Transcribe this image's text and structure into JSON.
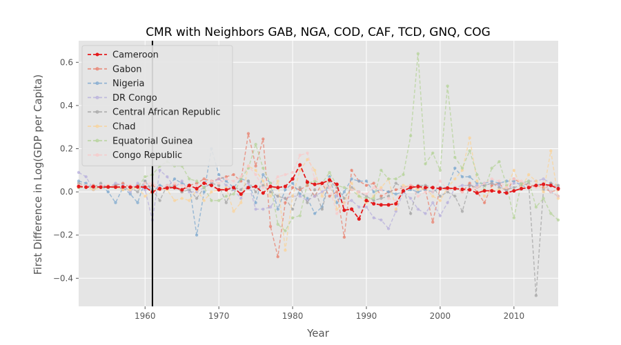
{
  "chart_data": {
    "type": "line",
    "title": "CMR with Neighbors GAB, NGA, COD, CAF, TCD, GNQ, COG",
    "xlabel": "Year",
    "ylabel": "First Difference in Log(GDP per Capita)",
    "xlim": [
      1951,
      2016
    ],
    "ylim": [
      -0.53,
      0.7
    ],
    "x_ticks": [
      1960,
      1970,
      1980,
      1990,
      2000,
      2010
    ],
    "y_ticks": [
      -0.4,
      -0.2,
      0.0,
      0.2,
      0.4,
      0.6
    ],
    "x_tick_labels": [
      "1960",
      "1970",
      "1980",
      "1990",
      "2000",
      "2010"
    ],
    "y_tick_labels": [
      "−0.4",
      "−0.2",
      "0.0",
      "0.2",
      "0.4",
      "0.6"
    ],
    "grid": true,
    "legend_position": "top-left",
    "vertical_line": {
      "x": 1961,
      "color": "#000000"
    },
    "x": [
      1951,
      1952,
      1953,
      1954,
      1955,
      1956,
      1957,
      1958,
      1959,
      1960,
      1961,
      1962,
      1963,
      1964,
      1965,
      1966,
      1967,
      1968,
      1969,
      1970,
      1971,
      1972,
      1973,
      1974,
      1975,
      1976,
      1977,
      1978,
      1979,
      1980,
      1981,
      1982,
      1983,
      1984,
      1985,
      1986,
      1987,
      1988,
      1989,
      1990,
      1991,
      1992,
      1993,
      1994,
      1995,
      1996,
      1997,
      1998,
      1999,
      2000,
      2001,
      2002,
      2003,
      2004,
      2005,
      2006,
      2007,
      2008,
      2009,
      2010,
      2011,
      2012,
      2013,
      2014,
      2015,
      2016
    ],
    "series": [
      {
        "name": "Cameroon",
        "color": "#e41a1c",
        "highlight": true,
        "values": [
          0.025,
          0.022,
          0.024,
          0.022,
          0.023,
          0.022,
          0.023,
          0.022,
          0.023,
          0.022,
          0.0,
          0.015,
          0.018,
          0.02,
          0.01,
          0.03,
          0.015,
          0.04,
          0.03,
          0.01,
          0.01,
          0.02,
          -0.01,
          0.02,
          0.025,
          -0.005,
          0.025,
          0.02,
          0.025,
          0.06,
          0.125,
          0.045,
          0.035,
          0.04,
          0.055,
          0.035,
          -0.085,
          -0.08,
          -0.125,
          -0.04,
          -0.055,
          -0.06,
          -0.06,
          -0.055,
          0.005,
          0.02,
          0.025,
          0.02,
          0.02,
          0.015,
          0.018,
          0.015,
          0.012,
          0.01,
          -0.005,
          0.005,
          0.005,
          0.0,
          -0.005,
          0.005,
          0.015,
          0.02,
          0.03,
          0.035,
          0.03,
          0.015
        ]
      },
      {
        "name": "Gabon",
        "color": "#e8806e",
        "values": [
          0.03,
          0.02,
          0.03,
          0.02,
          0.02,
          0.03,
          0.04,
          0.02,
          0.03,
          0.02,
          0.03,
          0.01,
          0.02,
          0.03,
          0.0,
          0.03,
          0.04,
          0.06,
          0.05,
          0.06,
          0.07,
          0.08,
          0.05,
          0.27,
          0.12,
          0.245,
          -0.16,
          -0.3,
          -0.05,
          0.02,
          0.01,
          0.03,
          -0.02,
          0.04,
          -0.02,
          0.0,
          -0.21,
          0.1,
          0.05,
          0.03,
          0.04,
          -0.02,
          0.0,
          0.01,
          0.02,
          0.03,
          0.02,
          0.01,
          -0.14,
          0.02,
          0.01,
          0.02,
          0.0,
          0.04,
          0.0,
          -0.05,
          0.03,
          0.04,
          0.0,
          0.06,
          0.04,
          0.03,
          0.03,
          0.02,
          0.0,
          0.01
        ]
      },
      {
        "name": "Nigeria",
        "color": "#7fa9cf",
        "values": [
          0.05,
          0.04,
          0.01,
          0.03,
          0.0,
          -0.05,
          0.02,
          -0.01,
          -0.05,
          0.05,
          0.0,
          0.03,
          0.02,
          0.06,
          0.04,
          0.03,
          -0.2,
          0.0,
          0.2,
          0.08,
          0.05,
          0.02,
          0.06,
          0.05,
          -0.05,
          0.08,
          0.04,
          -0.08,
          0.01,
          0.04,
          -0.01,
          -0.03,
          -0.1,
          -0.07,
          0.07,
          -0.05,
          0.0,
          0.06,
          0.05,
          0.05,
          0.0,
          0.01,
          0.0,
          -0.01,
          0.0,
          0.01,
          0.0,
          0.01,
          0.0,
          0.02,
          0.02,
          0.11,
          0.07,
          0.07,
          0.04,
          0.04,
          0.05,
          0.04,
          0.05,
          0.05,
          0.03,
          0.02,
          0.03,
          0.04,
          0.0,
          -0.02
        ]
      },
      {
        "name": "DR Congo",
        "color": "#b8b0dc",
        "values": [
          0.09,
          0.07,
          0.01,
          0.03,
          0.02,
          0.04,
          0.03,
          0.0,
          0.04,
          0.01,
          -0.13,
          0.1,
          0.07,
          0.02,
          0.05,
          0.0,
          0.0,
          0.02,
          0.04,
          0.06,
          0.03,
          0.01,
          -0.03,
          0.04,
          -0.08,
          -0.08,
          -0.07,
          -0.02,
          -0.03,
          -0.02,
          -0.02,
          -0.04,
          -0.02,
          0.0,
          0.02,
          -0.02,
          -0.05,
          -0.04,
          -0.07,
          -0.07,
          -0.12,
          -0.13,
          -0.17,
          -0.09,
          0.0,
          -0.03,
          -0.08,
          -0.1,
          -0.05,
          -0.11,
          -0.05,
          0.02,
          0.03,
          0.03,
          0.03,
          0.03,
          0.04,
          0.03,
          0.0,
          0.04,
          0.04,
          0.05,
          0.05,
          0.06,
          0.04,
          0.02
        ]
      },
      {
        "name": "Central African Republic",
        "color": "#a6a6a6",
        "values": [
          0.04,
          0.03,
          0.02,
          0.04,
          0.02,
          0.03,
          0.01,
          0.02,
          0.0,
          0.05,
          0.01,
          -0.04,
          0.03,
          0.02,
          0.0,
          0.01,
          -0.03,
          0.02,
          0.04,
          0.03,
          -0.05,
          0.02,
          0.01,
          0.05,
          0.0,
          0.03,
          0.0,
          -0.02,
          -0.03,
          -0.08,
          0.02,
          -0.05,
          0.01,
          -0.08,
          0.05,
          0.02,
          -0.03,
          0.02,
          0.0,
          -0.02,
          -0.04,
          -0.03,
          -0.02,
          0.04,
          0.02,
          -0.1,
          0.03,
          0.03,
          0.02,
          -0.02,
          0.0,
          -0.02,
          -0.09,
          0.03,
          0.02,
          0.03,
          0.04,
          0.02,
          0.01,
          0.02,
          0.03,
          0.04,
          -0.48,
          0.01,
          0.04,
          0.03
        ]
      },
      {
        "name": "Chad",
        "color": "#f9d39a",
        "values": [
          0.02,
          0.02,
          0.01,
          0.02,
          0.03,
          0.02,
          0.01,
          0.01,
          0.02,
          -0.02,
          0.0,
          0.02,
          0.01,
          -0.04,
          -0.03,
          -0.04,
          0.01,
          -0.04,
          0.0,
          0.01,
          0.02,
          -0.09,
          -0.05,
          0.12,
          0.1,
          0.05,
          -0.02,
          0.05,
          -0.27,
          -0.02,
          0.1,
          0.15,
          0.1,
          -0.02,
          0.06,
          -0.08,
          -0.05,
          0.04,
          -0.02,
          -0.05,
          -0.02,
          0.02,
          0.06,
          -0.08,
          0.03,
          0.02,
          0.01,
          0.02,
          -0.02,
          -0.04,
          0.02,
          0.06,
          0.1,
          0.25,
          0.05,
          -0.02,
          0.01,
          0.01,
          0.02,
          0.1,
          0.02,
          0.08,
          0.05,
          0.0,
          0.19,
          -0.03
        ]
      },
      {
        "name": "Equatorial Guinea",
        "color": "#b5d39a",
        "values": [
          0.02,
          0.02,
          0.02,
          0.02,
          0.02,
          0.02,
          0.02,
          0.02,
          0.02,
          0.07,
          0.08,
          0.12,
          0.14,
          0.12,
          0.12,
          0.06,
          0.05,
          0.02,
          -0.04,
          -0.04,
          -0.02,
          -0.01,
          0.06,
          0.11,
          0.22,
          0.11,
          0.04,
          -0.15,
          -0.18,
          -0.12,
          -0.11,
          0.04,
          0.05,
          0.04,
          0.09,
          0.03,
          0.02,
          0.01,
          -0.02,
          -0.03,
          -0.03,
          0.1,
          0.06,
          0.06,
          0.08,
          0.26,
          0.64,
          0.13,
          0.18,
          0.1,
          0.49,
          0.16,
          0.11,
          0.19,
          0.08,
          0.01,
          0.11,
          0.14,
          0.03,
          -0.12,
          0.04,
          0.05,
          -0.07,
          -0.03,
          -0.1,
          -0.13
        ]
      },
      {
        "name": "Congo Republic",
        "color": "#f8c9c9",
        "values": [
          0.03,
          0.03,
          0.02,
          0.03,
          0.03,
          0.02,
          0.02,
          0.03,
          0.02,
          0.04,
          0.04,
          0.02,
          0.03,
          0.04,
          0.03,
          0.02,
          0.03,
          0.04,
          0.05,
          0.04,
          0.06,
          0.05,
          0.07,
          0.12,
          0.08,
          0.02,
          0.03,
          0.07,
          0.08,
          0.09,
          0.17,
          0.18,
          0.06,
          0.04,
          0.02,
          -0.1,
          -0.06,
          0.01,
          0.0,
          -0.01,
          0.02,
          0.01,
          -0.03,
          -0.04,
          0.02,
          0.03,
          -0.02,
          0.0,
          0.0,
          0.05,
          0.01,
          0.02,
          0.0,
          0.01,
          0.02,
          0.04,
          0.06,
          0.05,
          0.02,
          0.06,
          0.05,
          0.03,
          0.02,
          0.04,
          0.0,
          -0.02
        ]
      }
    ]
  }
}
